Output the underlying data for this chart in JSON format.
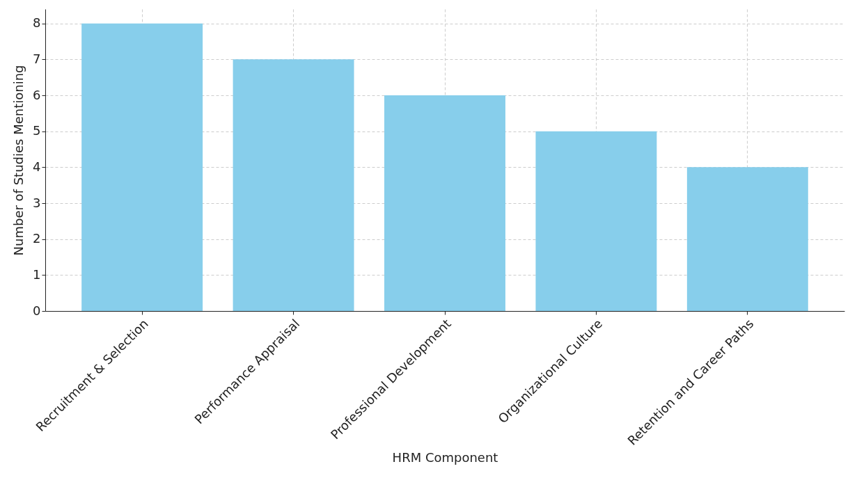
{
  "chart_data": {
    "type": "bar",
    "xlabel": "HRM Component",
    "ylabel": "Number of Studies Mentioning",
    "categories": [
      "Recruitment & Selection",
      "Performance Appraisal",
      "Professional Development",
      "Organizational Culture",
      "Retention and Career Paths"
    ],
    "values": [
      8,
      7,
      6,
      5,
      4
    ],
    "color": "#87ceeb",
    "ylim": [
      0,
      8.4
    ],
    "yticks": [
      0,
      1,
      2,
      3,
      4,
      5,
      6,
      7,
      8
    ],
    "grid": true
  }
}
